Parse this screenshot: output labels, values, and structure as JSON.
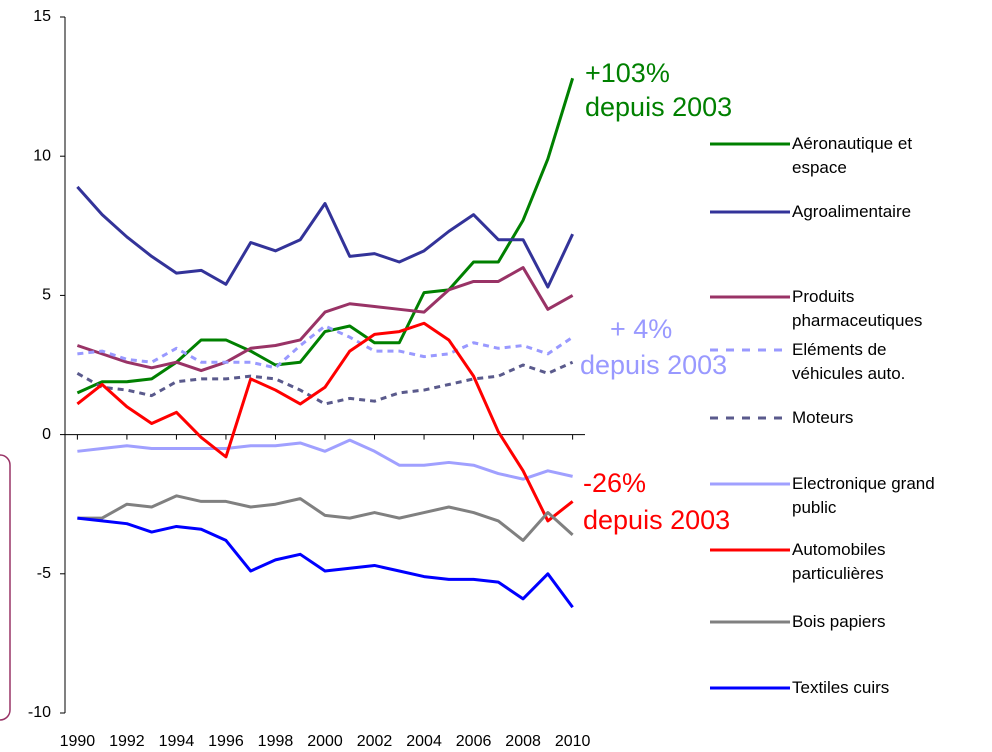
{
  "chart_data": {
    "type": "line",
    "x": [
      1990,
      1991,
      1992,
      1993,
      1994,
      1995,
      1996,
      1997,
      1998,
      1999,
      2000,
      2001,
      2002,
      2003,
      2004,
      2005,
      2006,
      2007,
      2008,
      2009,
      2010
    ],
    "xlim": [
      1989.5,
      2010.5
    ],
    "xticks": [
      1990,
      1992,
      1994,
      1996,
      1998,
      2000,
      2002,
      2004,
      2006,
      2008,
      2010
    ],
    "ylim": [
      -10,
      15
    ],
    "yticks": [
      -10,
      -5,
      0,
      5,
      10,
      15
    ],
    "series": [
      {
        "name": "Aéronautique et espace",
        "color": "#008000",
        "dashed": false,
        "values": [
          1.5,
          1.9,
          1.9,
          2.0,
          2.6,
          3.4,
          3.4,
          3.0,
          2.5,
          2.6,
          3.7,
          3.9,
          3.3,
          3.3,
          5.1,
          5.2,
          6.2,
          6.2,
          7.7,
          9.9,
          12.8
        ]
      },
      {
        "name": "Agroalimentaire",
        "color": "#333399",
        "dashed": false,
        "values": [
          8.9,
          7.9,
          7.1,
          6.4,
          5.8,
          5.9,
          5.4,
          6.9,
          6.6,
          7.0,
          8.3,
          6.4,
          6.5,
          6.2,
          6.6,
          7.3,
          7.9,
          7.0,
          7.0,
          5.3,
          7.2
        ]
      },
      {
        "name": "Produits pharmaceutiques",
        "color": "#993366",
        "dashed": false,
        "values": [
          3.2,
          2.9,
          2.6,
          2.4,
          2.6,
          2.3,
          2.6,
          3.1,
          3.2,
          3.4,
          4.4,
          4.7,
          4.6,
          4.5,
          4.4,
          5.2,
          5.5,
          5.5,
          6.0,
          4.5,
          5.0
        ]
      },
      {
        "name": "Eléments de véhicules auto.",
        "color": "#9999ff",
        "dashed": true,
        "values": [
          2.9,
          3.0,
          2.7,
          2.6,
          3.1,
          2.6,
          2.6,
          2.6,
          2.4,
          3.2,
          3.9,
          3.5,
          3.0,
          3.0,
          2.8,
          2.9,
          3.3,
          3.1,
          3.2,
          2.9,
          3.5
        ]
      },
      {
        "name": "Moteurs",
        "color": "#5a5a8c",
        "dashed": true,
        "values": [
          2.2,
          1.7,
          1.6,
          1.4,
          1.9,
          2.0,
          2.0,
          2.1,
          2.0,
          1.6,
          1.1,
          1.3,
          1.2,
          1.5,
          1.6,
          1.8,
          2.0,
          2.1,
          2.5,
          2.2,
          2.6
        ]
      },
      {
        "name": "Electronique grand public",
        "color": "#a0a0ff",
        "dashed": false,
        "values": [
          -0.6,
          -0.5,
          -0.4,
          -0.5,
          -0.5,
          -0.5,
          -0.5,
          -0.4,
          -0.4,
          -0.3,
          -0.6,
          -0.2,
          -0.6,
          -1.1,
          -1.1,
          -1.0,
          -1.1,
          -1.4,
          -1.6,
          -1.3,
          -1.5
        ]
      },
      {
        "name": "Automobiles particulières",
        "color": "#ff0000",
        "dashed": false,
        "values": [
          1.1,
          1.8,
          1.0,
          0.4,
          0.8,
          -0.1,
          -0.8,
          2.0,
          1.6,
          1.1,
          1.7,
          3.0,
          3.6,
          3.7,
          4.0,
          3.4,
          2.1,
          0.1,
          -1.3,
          -3.1,
          -2.4
        ]
      },
      {
        "name": "Bois papiers",
        "color": "#808080",
        "dashed": false,
        "values": [
          -3.0,
          -3.0,
          -2.5,
          -2.6,
          -2.2,
          -2.4,
          -2.4,
          -2.6,
          -2.5,
          -2.3,
          -2.9,
          -3.0,
          -2.8,
          -3.0,
          -2.8,
          -2.6,
          -2.8,
          -3.1,
          -3.8,
          -2.8,
          -3.6
        ]
      },
      {
        "name": "Textiles cuirs",
        "color": "#0000ff",
        "dashed": false,
        "values": [
          -3.0,
          -3.1,
          -3.2,
          -3.5,
          -3.3,
          -3.4,
          -3.8,
          -4.9,
          -4.5,
          -4.3,
          -4.9,
          -4.8,
          -4.7,
          -4.9,
          -5.1,
          -5.2,
          -5.2,
          -5.3,
          -5.9,
          -5.0,
          -6.2
        ]
      }
    ],
    "annotations": [
      {
        "text": "+103%",
        "color": "#008000"
      },
      {
        "text": "depuis 2003",
        "color": "#008000"
      },
      {
        "text": "+ 4%",
        "color": "#9999ff"
      },
      {
        "text": "depuis 2003",
        "color": "#9999ff"
      },
      {
        "text": "-26%",
        "color": "#ff0000"
      },
      {
        "text": "depuis 2003",
        "color": "#ff0000"
      }
    ]
  }
}
